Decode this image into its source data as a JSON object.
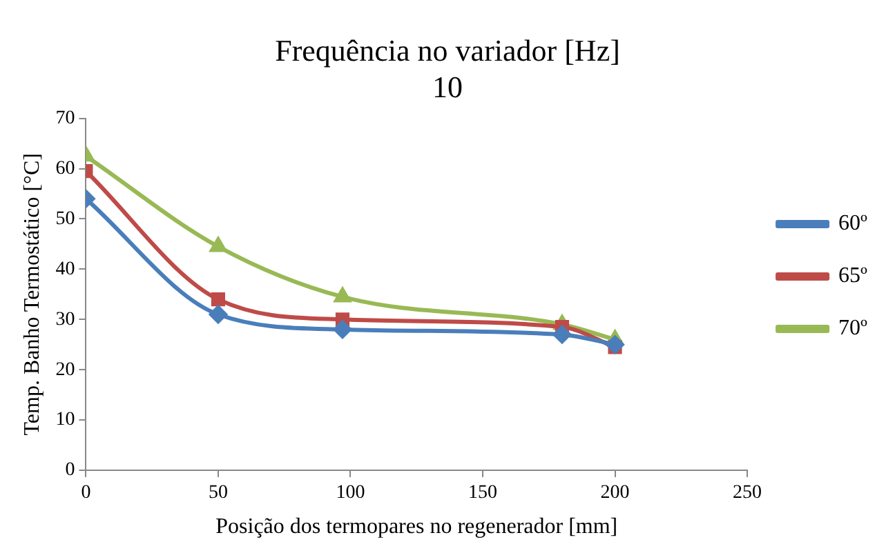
{
  "chart_data": {
    "type": "line",
    "title": [
      "Frequência no variador [Hz]",
      "10"
    ],
    "xlabel": "Posição dos termopares no regenerador [mm]",
    "ylabel": "Temp. Banho Termostático [°C]",
    "x": [
      0,
      50,
      97,
      180,
      200
    ],
    "series": [
      {
        "name": "60º",
        "color": "#4a7ebb",
        "marker": "diamond",
        "values": [
          54,
          31,
          28,
          27,
          25
        ]
      },
      {
        "name": "65º",
        "color": "#be4b48",
        "marker": "square",
        "values": [
          59.5,
          34,
          30,
          28.5,
          24.5
        ]
      },
      {
        "name": "70º",
        "color": "#98b954",
        "marker": "triangle",
        "values": [
          62.5,
          44.5,
          34.5,
          29,
          26
        ]
      }
    ],
    "xlim": [
      0,
      250
    ],
    "xticks": [
      0,
      50,
      100,
      150,
      200,
      250
    ],
    "ylim": [
      0,
      70
    ],
    "yticks": [
      0,
      10,
      20,
      30,
      40,
      50,
      60,
      70
    ],
    "grid": false,
    "legend": "right",
    "line_style": "solid"
  }
}
